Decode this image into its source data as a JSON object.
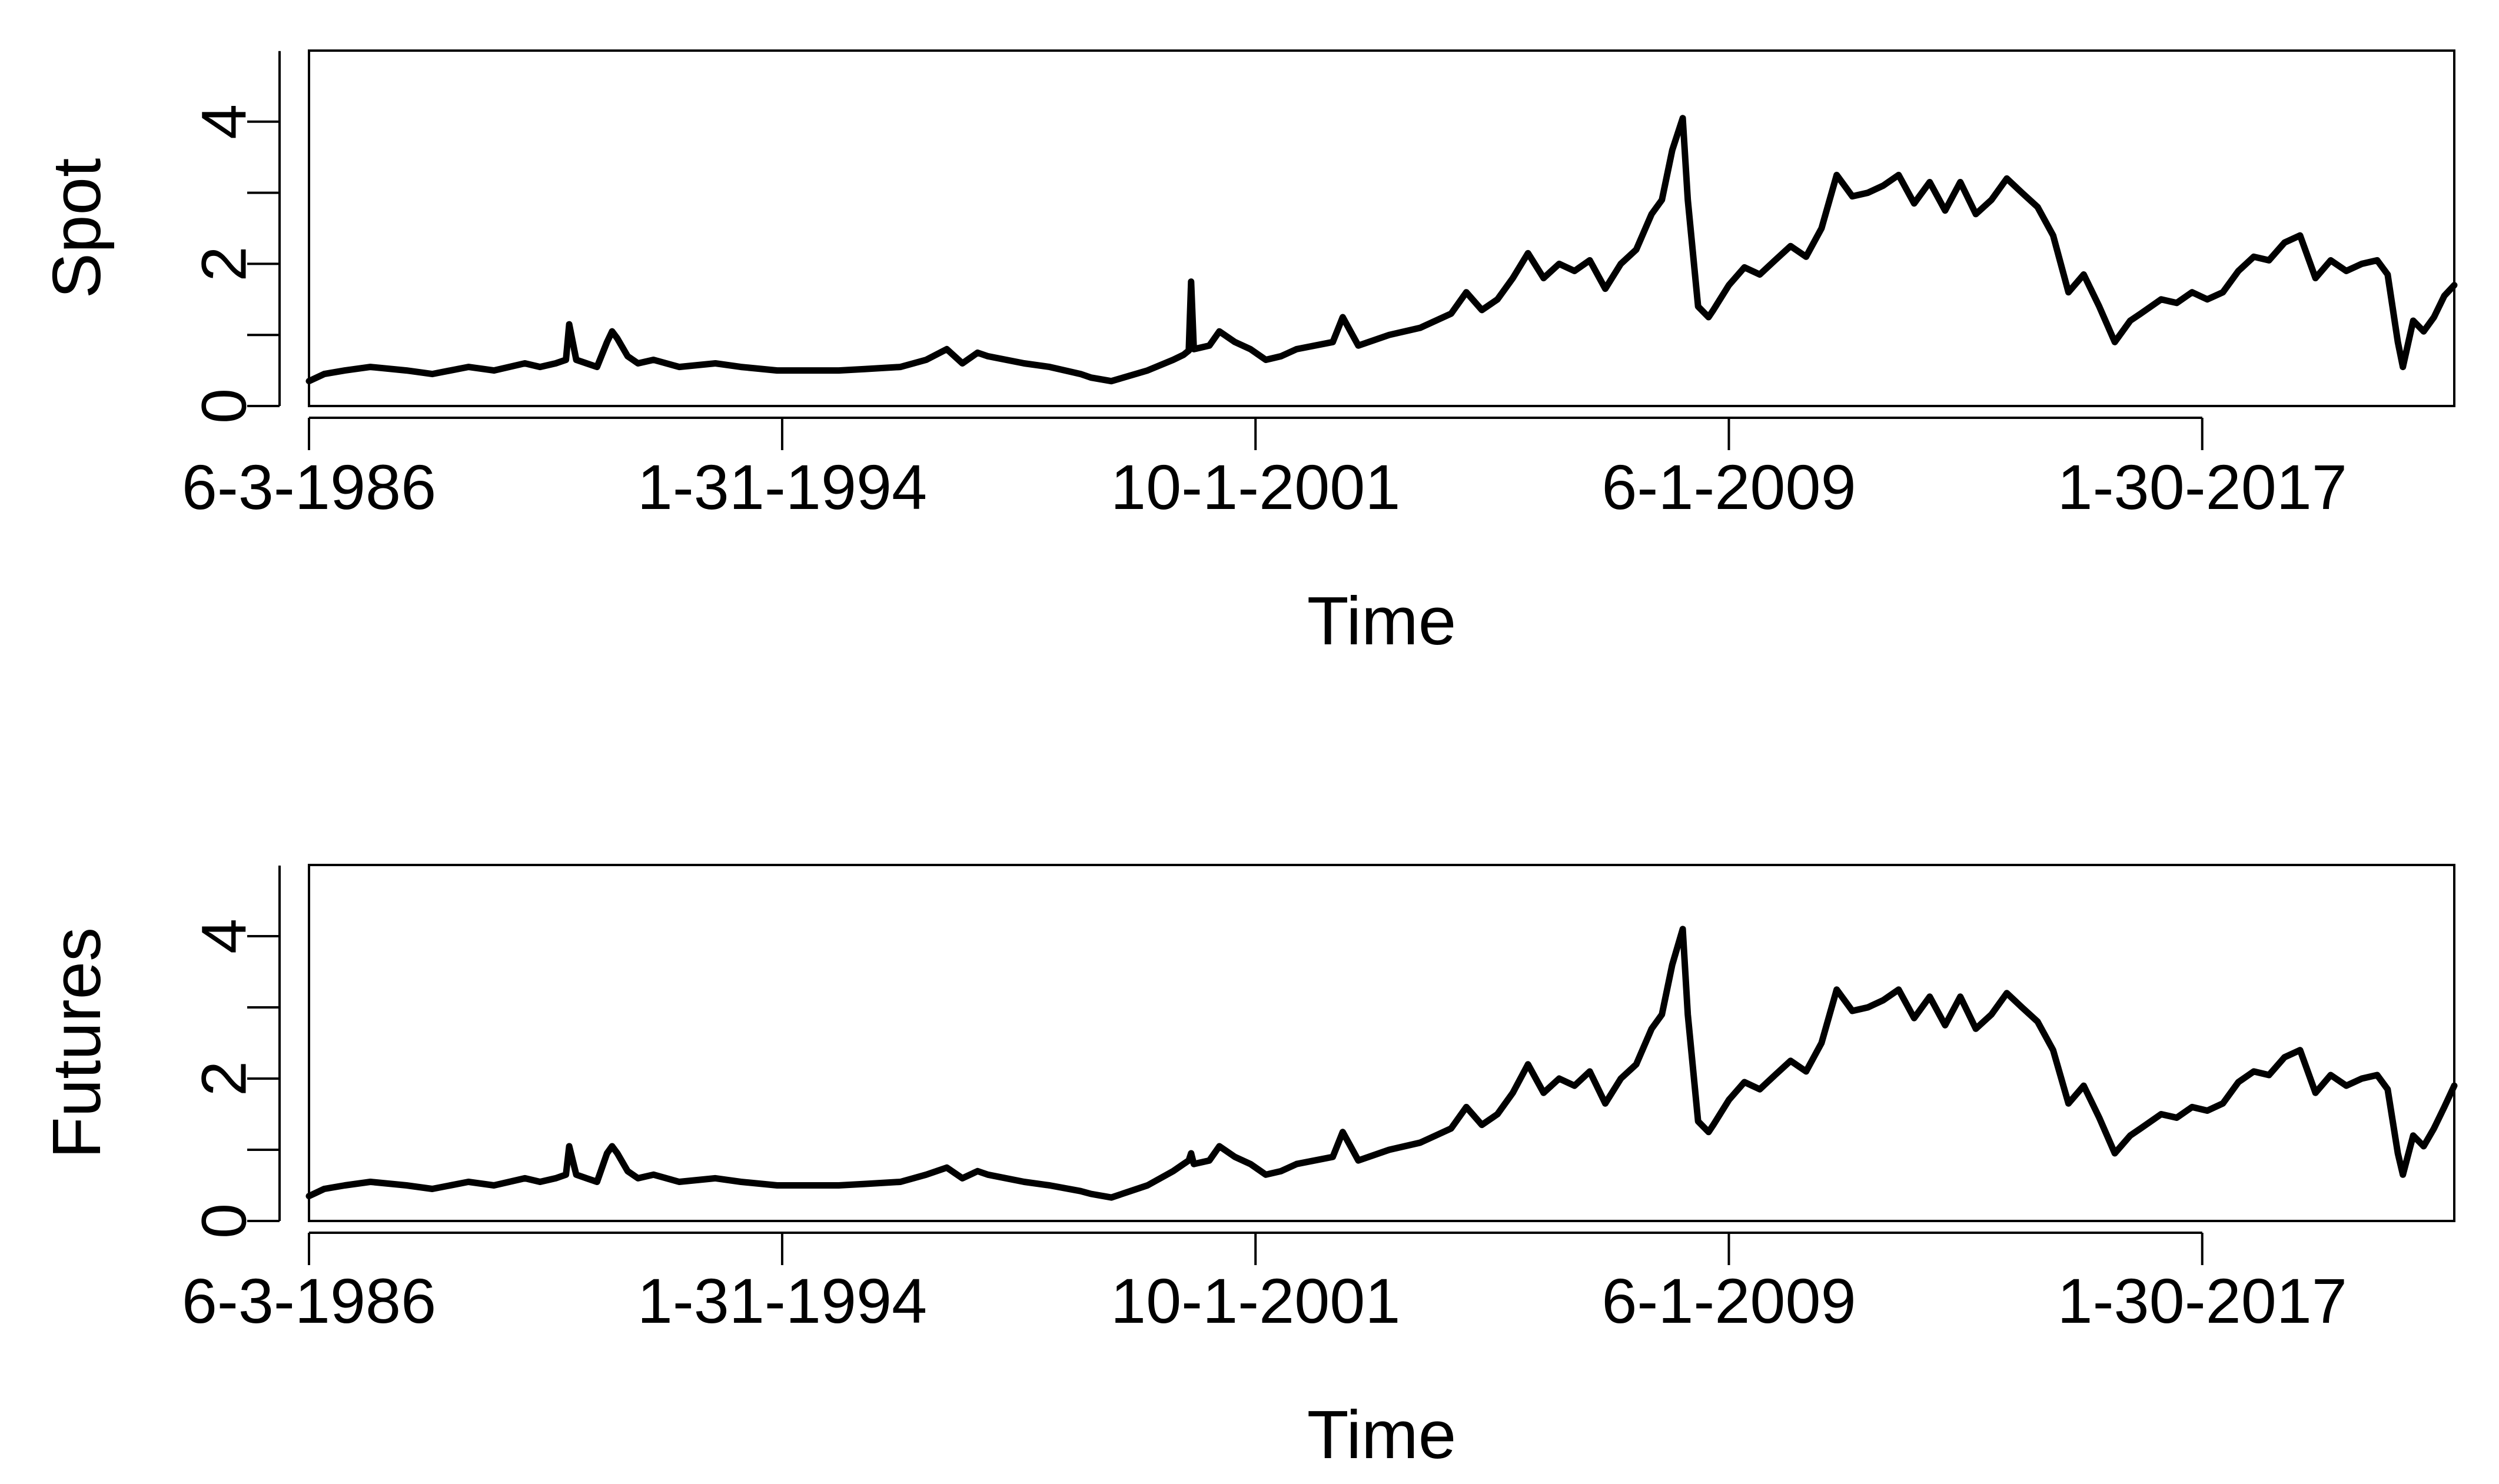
{
  "chart_data": [
    {
      "type": "line",
      "panel": "top",
      "xlabel": "Time",
      "ylabel": "Spot",
      "ylim": [
        0,
        5
      ],
      "yticks": [
        0,
        1,
        2,
        3,
        4
      ],
      "ytick_labels": [
        "0",
        "",
        "2",
        "",
        "4"
      ],
      "xlim": [
        "1986-06-03",
        "2021-03-01"
      ],
      "xticks": [
        "1986-06-03",
        "1994-01-31",
        "2001-10-01",
        "2009-06-01",
        "2017-01-30"
      ],
      "xtick_labels": [
        "6-3-1986",
        "1-31-1994",
        "10-1-2001",
        "6-1-2009",
        "1-30-2017"
      ],
      "grid": false,
      "line_color": "#000000",
      "series": [
        {
          "x": [
            "1986-06-03",
            "1986-09-01",
            "1987-01-01",
            "1987-06-01",
            "1988-01-01",
            "1988-06-01",
            "1989-01-01",
            "1989-06-01",
            "1989-12-01",
            "1990-03-01",
            "1990-06-01",
            "1990-08-01",
            "1990-08-20",
            "1990-10-01",
            "1990-12-01",
            "1991-02-01",
            "1991-04-01",
            "1991-05-01",
            "1991-06-01",
            "1991-08-01",
            "1991-10-01",
            "1992-01-01",
            "1992-06-01",
            "1993-01-01",
            "1993-06-01",
            "1994-01-01",
            "1994-06-01",
            "1995-01-01",
            "1995-06-01",
            "1996-01-01",
            "1996-06-01",
            "1996-10-01",
            "1997-01-01",
            "1997-04-01",
            "1997-06-01",
            "1998-01-01",
            "1998-06-01",
            "1998-12-01",
            "1999-02-01",
            "1999-06-01",
            "2000-01-01",
            "2000-06-01",
            "2000-08-01",
            "2000-09-01",
            "2000-09-15",
            "2000-10-01",
            "2001-01-01",
            "2001-03-01",
            "2001-06-01",
            "2001-09-01",
            "2001-12-01",
            "2002-03-01",
            "2002-06-01",
            "2003-01-01",
            "2003-03-01",
            "2003-06-01",
            "2003-12-01",
            "2004-06-01",
            "2004-12-01",
            "2005-03-01",
            "2005-06-01",
            "2005-09-01",
            "2005-12-01",
            "2006-03-01",
            "2006-06-01",
            "2006-09-01",
            "2006-12-01",
            "2007-03-01",
            "2007-06-01",
            "2007-09-01",
            "2007-12-01",
            "2008-03-01",
            "2008-05-01",
            "2008-07-01",
            "2008-09-01",
            "2008-10-01",
            "2008-12-01",
            "2009-02-01",
            "2009-03-01",
            "2009-06-01",
            "2009-09-01",
            "2009-12-01",
            "2010-03-01",
            "2010-06-01",
            "2010-09-01",
            "2010-12-01",
            "2011-03-01",
            "2011-06-01",
            "2011-09-01",
            "2011-12-01",
            "2012-03-01",
            "2012-06-01",
            "2012-09-01",
            "2012-12-01",
            "2013-03-01",
            "2013-06-01",
            "2013-09-01",
            "2013-12-01",
            "2014-03-01",
            "2014-06-01",
            "2014-09-01",
            "2014-12-01",
            "2015-03-01",
            "2015-06-01",
            "2015-09-01",
            "2015-12-01",
            "2016-02-01",
            "2016-06-01",
            "2016-09-01",
            "2016-12-01",
            "2017-03-01",
            "2017-06-01",
            "2017-09-01",
            "2017-12-01",
            "2018-03-01",
            "2018-06-01",
            "2018-09-01",
            "2018-12-01",
            "2019-03-01",
            "2019-06-01",
            "2019-09-01",
            "2019-12-01",
            "2020-02-01",
            "2020-04-01",
            "2020-05-01",
            "2020-07-01",
            "2020-09-01",
            "2020-11-01",
            "2021-01-01",
            "2021-03-01"
          ],
          "y": [
            0.35,
            0.45,
            0.5,
            0.55,
            0.5,
            0.45,
            0.55,
            0.5,
            0.6,
            0.55,
            0.6,
            0.65,
            1.15,
            0.65,
            0.6,
            0.55,
            0.9,
            1.05,
            0.95,
            0.7,
            0.6,
            0.65,
            0.55,
            0.6,
            0.55,
            0.5,
            0.5,
            0.5,
            0.52,
            0.55,
            0.65,
            0.8,
            0.6,
            0.75,
            0.7,
            0.6,
            0.55,
            0.45,
            0.4,
            0.35,
            0.5,
            0.65,
            0.72,
            0.78,
            1.75,
            0.8,
            0.85,
            1.05,
            0.9,
            0.8,
            0.65,
            0.7,
            0.8,
            0.9,
            1.25,
            0.85,
            1.0,
            1.1,
            1.3,
            1.6,
            1.35,
            1.5,
            1.8,
            2.15,
            1.8,
            2.0,
            1.9,
            2.05,
            1.65,
            2.0,
            2.2,
            2.7,
            2.9,
            3.6,
            4.05,
            2.9,
            1.4,
            1.25,
            1.35,
            1.7,
            1.95,
            1.85,
            2.05,
            2.25,
            2.1,
            2.5,
            3.25,
            2.95,
            3.0,
            3.1,
            3.25,
            2.85,
            3.15,
            2.75,
            3.15,
            2.7,
            2.9,
            3.2,
            3.0,
            2.8,
            2.4,
            1.6,
            1.85,
            1.4,
            0.9,
            1.2,
            1.3,
            1.5,
            1.45,
            1.6,
            1.5,
            1.6,
            1.9,
            2.1,
            2.05,
            2.3,
            2.4,
            1.8,
            2.05,
            1.9,
            2.0,
            2.05,
            1.85,
            0.9,
            0.55,
            1.2,
            1.05,
            1.25,
            1.55,
            1.7
          ]
        }
      ]
    },
    {
      "type": "line",
      "panel": "bottom",
      "xlabel": "Time",
      "ylabel": "Futures",
      "ylim": [
        0,
        5
      ],
      "yticks": [
        0,
        1,
        2,
        3,
        4
      ],
      "ytick_labels": [
        "0",
        "",
        "2",
        "",
        "4"
      ],
      "xlim": [
        "1986-06-03",
        "2021-03-01"
      ],
      "xticks": [
        "1986-06-03",
        "1994-01-31",
        "2001-10-01",
        "2009-06-01",
        "2017-01-30"
      ],
      "xtick_labels": [
        "6-3-1986",
        "1-31-1994",
        "10-1-2001",
        "6-1-2009",
        "1-30-2017"
      ],
      "grid": false,
      "line_color": "#000000",
      "series": [
        {
          "x": [
            "1986-06-03",
            "1986-09-01",
            "1987-01-01",
            "1987-06-01",
            "1988-01-01",
            "1988-06-01",
            "1989-01-01",
            "1989-06-01",
            "1989-12-01",
            "1990-03-01",
            "1990-06-01",
            "1990-08-01",
            "1990-08-20",
            "1990-10-01",
            "1990-12-01",
            "1991-02-01",
            "1991-04-01",
            "1991-05-01",
            "1991-06-01",
            "1991-08-01",
            "1991-10-01",
            "1992-01-01",
            "1992-06-01",
            "1993-01-01",
            "1993-06-01",
            "1994-01-01",
            "1994-06-01",
            "1995-01-01",
            "1995-06-01",
            "1996-01-01",
            "1996-06-01",
            "1996-10-01",
            "1997-01-01",
            "1997-04-01",
            "1997-06-01",
            "1998-01-01",
            "1998-06-01",
            "1998-12-01",
            "1999-02-01",
            "1999-06-01",
            "2000-01-01",
            "2000-06-01",
            "2000-08-01",
            "2000-09-01",
            "2000-09-15",
            "2000-10-01",
            "2001-01-01",
            "2001-03-01",
            "2001-06-01",
            "2001-09-01",
            "2001-12-01",
            "2002-03-01",
            "2002-06-01",
            "2003-01-01",
            "2003-03-01",
            "2003-06-01",
            "2003-12-01",
            "2004-06-01",
            "2004-12-01",
            "2005-03-01",
            "2005-06-01",
            "2005-09-01",
            "2005-12-01",
            "2006-03-01",
            "2006-06-01",
            "2006-09-01",
            "2006-12-01",
            "2007-03-01",
            "2007-06-01",
            "2007-09-01",
            "2007-12-01",
            "2008-03-01",
            "2008-05-01",
            "2008-07-01",
            "2008-09-01",
            "2008-10-01",
            "2008-12-01",
            "2009-02-01",
            "2009-03-01",
            "2009-06-01",
            "2009-09-01",
            "2009-12-01",
            "2010-03-01",
            "2010-06-01",
            "2010-09-01",
            "2010-12-01",
            "2011-03-01",
            "2011-06-01",
            "2011-09-01",
            "2011-12-01",
            "2012-03-01",
            "2012-06-01",
            "2012-09-01",
            "2012-12-01",
            "2013-03-01",
            "2013-06-01",
            "2013-09-01",
            "2013-12-01",
            "2014-03-01",
            "2014-06-01",
            "2014-09-01",
            "2014-12-01",
            "2015-03-01",
            "2015-06-01",
            "2015-09-01",
            "2015-12-01",
            "2016-02-01",
            "2016-06-01",
            "2016-09-01",
            "2016-12-01",
            "2017-03-01",
            "2017-06-01",
            "2017-09-01",
            "2017-12-01",
            "2018-03-01",
            "2018-06-01",
            "2018-09-01",
            "2018-12-01",
            "2019-03-01",
            "2019-06-01",
            "2019-09-01",
            "2019-12-01",
            "2020-02-01",
            "2020-04-01",
            "2020-05-01",
            "2020-07-01",
            "2020-09-01",
            "2020-11-01",
            "2021-01-01",
            "2021-03-01"
          ],
          "y": [
            0.35,
            0.45,
            0.5,
            0.55,
            0.5,
            0.45,
            0.55,
            0.5,
            0.6,
            0.55,
            0.6,
            0.65,
            1.05,
            0.65,
            0.6,
            0.55,
            0.95,
            1.05,
            0.95,
            0.7,
            0.6,
            0.65,
            0.55,
            0.6,
            0.55,
            0.5,
            0.5,
            0.5,
            0.52,
            0.55,
            0.65,
            0.75,
            0.6,
            0.7,
            0.65,
            0.55,
            0.5,
            0.42,
            0.38,
            0.33,
            0.5,
            0.7,
            0.8,
            0.85,
            0.95,
            0.8,
            0.85,
            1.05,
            0.9,
            0.8,
            0.65,
            0.7,
            0.8,
            0.9,
            1.25,
            0.85,
            1.0,
            1.1,
            1.3,
            1.6,
            1.35,
            1.5,
            1.8,
            2.2,
            1.8,
            2.0,
            1.9,
            2.1,
            1.65,
            2.0,
            2.2,
            2.7,
            2.9,
            3.6,
            4.1,
            2.9,
            1.4,
            1.25,
            1.35,
            1.7,
            1.95,
            1.85,
            2.05,
            2.25,
            2.1,
            2.5,
            3.25,
            2.95,
            3.0,
            3.1,
            3.25,
            2.85,
            3.15,
            2.75,
            3.15,
            2.7,
            2.9,
            3.2,
            3.0,
            2.8,
            2.4,
            1.65,
            1.9,
            1.45,
            0.95,
            1.2,
            1.3,
            1.5,
            1.45,
            1.6,
            1.55,
            1.65,
            1.95,
            2.1,
            2.05,
            2.3,
            2.4,
            1.8,
            2.05,
            1.9,
            2.0,
            2.05,
            1.85,
            0.95,
            0.65,
            1.2,
            1.05,
            1.3,
            1.6,
            1.9
          ]
        }
      ]
    }
  ]
}
